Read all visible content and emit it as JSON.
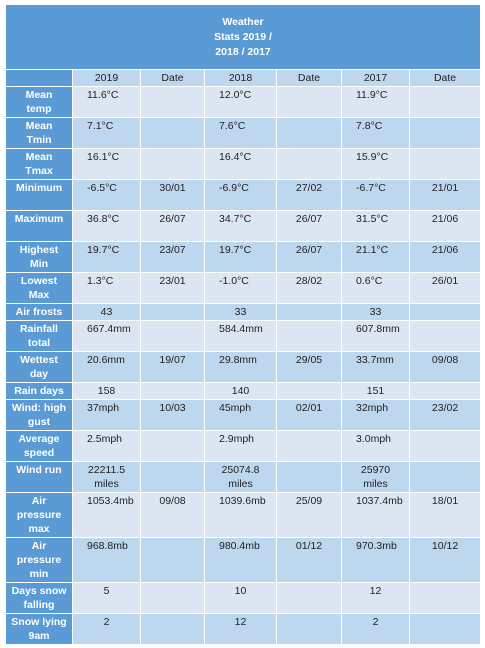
{
  "title_lines": [
    "Weather",
    "Stats 2019 /",
    "2018 / 2017"
  ],
  "headers": [
    "",
    "2019",
    "Date",
    "2018",
    "Date",
    "2017",
    "Date"
  ],
  "rows": [
    {
      "label": [
        "Mean",
        "temp"
      ],
      "cells": [
        [
          "11.6°C"
        ],
        [],
        [
          "12.0°C"
        ],
        [],
        [
          "11.9°C"
        ],
        []
      ],
      "h": 30
    },
    {
      "label": [
        "Mean",
        "Tmin"
      ],
      "cells": [
        [
          "7.1°C"
        ],
        [],
        [
          "7.6°C"
        ],
        [],
        [
          "7.8°C"
        ],
        []
      ],
      "h": 30
    },
    {
      "label": [
        "Mean",
        "Tmax"
      ],
      "cells": [
        [
          "16.1°C"
        ],
        [],
        [
          "16.4°C"
        ],
        [],
        [
          "15.9°C"
        ],
        []
      ],
      "h": 30
    },
    {
      "label": [
        "Minimum"
      ],
      "cells": [
        [
          "-6.5°C"
        ],
        [
          "30/01"
        ],
        [
          "-6.9°C"
        ],
        [
          "27/02"
        ],
        [
          "-6.7°C"
        ],
        [
          "21/01"
        ]
      ],
      "h": 31
    },
    {
      "label": [
        "Maximum"
      ],
      "cells": [
        [
          "36.8°C"
        ],
        [
          "26/07"
        ],
        [
          "34.7°C"
        ],
        [
          "26/07"
        ],
        [
          "31.5°C"
        ],
        [
          "21/06"
        ]
      ],
      "h": 31
    },
    {
      "label": [
        "Highest",
        "Min"
      ],
      "cells": [
        [
          "19.7°C"
        ],
        [
          "23/07"
        ],
        [
          "19.7°C"
        ],
        [
          "26/07"
        ],
        [
          "21.1°C"
        ],
        [
          "21/06"
        ]
      ],
      "h": 31
    },
    {
      "label": [
        "Lowest",
        "Max"
      ],
      "cells": [
        [
          "1.3°C"
        ],
        [
          "23/01"
        ],
        [
          "-1.0°C"
        ],
        [
          "28/02"
        ],
        [
          "0.6°C"
        ],
        [
          "26/01"
        ]
      ],
      "h": 30
    },
    {
      "label": [
        "Air frosts"
      ],
      "cells": [
        [
          "43"
        ],
        [],
        [
          "33"
        ],
        [],
        [
          "33"
        ],
        []
      ],
      "h": 15
    },
    {
      "label": [
        "Rainfall",
        "total"
      ],
      "cells": [
        [
          "667.4mm"
        ],
        [],
        [
          "584.4mm"
        ],
        [],
        [
          "607.8mm"
        ],
        []
      ],
      "h": 31
    },
    {
      "label": [
        "Wettest",
        "day"
      ],
      "cells": [
        [
          "20.6mm"
        ],
        [
          "19/07"
        ],
        [
          "29.8mm"
        ],
        [
          "29/05"
        ],
        [
          "33.7mm"
        ],
        [
          "09/08"
        ]
      ],
      "h": 31
    },
    {
      "label": [
        "Rain days"
      ],
      "cells": [
        [
          "158"
        ],
        [],
        [
          "140"
        ],
        [],
        [
          "151"
        ],
        []
      ],
      "h": 15
    },
    {
      "label": [
        "Wind: high",
        "gust"
      ],
      "cells": [
        [
          "37mph"
        ],
        [
          "10/03"
        ],
        [
          "45mph"
        ],
        [
          "02/01"
        ],
        [
          "32mph"
        ],
        [
          "23/02"
        ]
      ],
      "h": 31
    },
    {
      "label": [
        "Average",
        "speed"
      ],
      "cells": [
        [
          "2.5mph"
        ],
        [],
        [
          "2.9mph"
        ],
        [],
        [
          "3.0mph"
        ],
        []
      ],
      "h": 31
    },
    {
      "label": [
        "Wind run"
      ],
      "cells": [
        [
          "22211.5",
          "miles"
        ],
        [],
        [
          "25074.8",
          "miles"
        ],
        [],
        [
          "25970",
          "miles"
        ],
        []
      ],
      "h": 31
    },
    {
      "label": [
        "Air",
        "pressure",
        "max"
      ],
      "cells": [
        [
          "1053.4mb"
        ],
        [
          "09/08"
        ],
        [
          "1039.6mb"
        ],
        [
          "25/09"
        ],
        [
          "1037.4mb"
        ],
        [
          "18/01"
        ]
      ],
      "h": 45
    },
    {
      "label": [
        "Air",
        "pressure",
        "min"
      ],
      "cells": [
        [
          "968.8mb"
        ],
        [],
        [
          "980.4mb"
        ],
        [
          "01/12"
        ],
        [
          "970.3mb"
        ],
        [
          "10/12"
        ]
      ],
      "h": 45
    },
    {
      "label": [
        "Days snow",
        "falling"
      ],
      "cells": [
        [
          "5"
        ],
        [],
        [
          "10"
        ],
        [],
        [
          "12"
        ],
        []
      ],
      "h": 31
    },
    {
      "label": [
        "Snow lying",
        "9am"
      ],
      "cells": [
        [
          "2"
        ],
        [],
        [
          "12"
        ],
        [],
        [
          "2"
        ],
        []
      ],
      "h": 31
    }
  ]
}
